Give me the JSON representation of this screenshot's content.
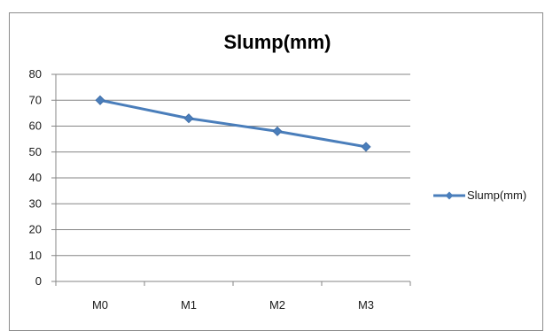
{
  "chart_data": {
    "type": "line",
    "title": "Slump(mm)",
    "categories": [
      "M0",
      "M1",
      "M2",
      "M3"
    ],
    "series": [
      {
        "name": "Slump(mm)",
        "values": [
          70,
          63,
          58,
          52
        ]
      }
    ],
    "ylim": [
      0,
      80
    ],
    "yticks": [
      "0",
      "10",
      "20",
      "30",
      "40",
      "50",
      "60",
      "70",
      "80"
    ],
    "grid": true,
    "legend": "right",
    "colors": {
      "series": "#4a7ebb",
      "grid": "#868686",
      "axis": "#868686"
    },
    "xlabel": "",
    "ylabel": ""
  }
}
